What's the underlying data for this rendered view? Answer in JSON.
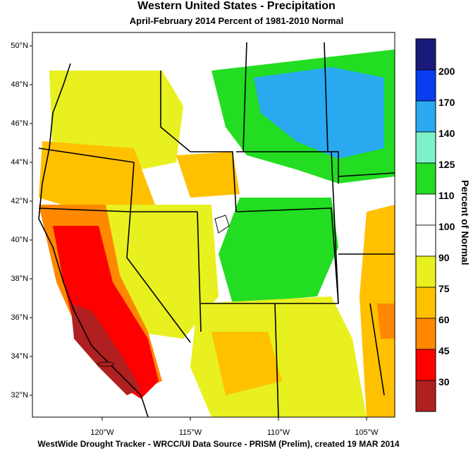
{
  "title": "Western United States - Precipitation",
  "subtitle": "April-February 2014  Percent of 1981-2010 Normal",
  "footer": "WestWide Drought Tracker - WRCC/UI  Data Source - PRISM (Prelim), created 19 MAR 2014",
  "lat_labels": [
    "50°N",
    "48°N",
    "46°N",
    "44°N",
    "42°N",
    "40°N",
    "38°N",
    "36°N",
    "34°N",
    "32°N"
  ],
  "lon_labels": [
    "120°W",
    "115°W",
    "110°W",
    "105°W"
  ],
  "legend": {
    "title": "Percent of Normal",
    "labels": [
      "200",
      "170",
      "140",
      "125",
      "110",
      "100",
      "90",
      "75",
      "60",
      "45",
      "30"
    ],
    "colors": [
      "#1a1a7a",
      "#0a3cf0",
      "#2aa8f0",
      "#7df2c8",
      "#22dd22",
      "#ffffff",
      "#ffffff",
      "#e8f020",
      "#ffc000",
      "#ff8800",
      "#ff0000",
      "#b02020"
    ]
  }
}
